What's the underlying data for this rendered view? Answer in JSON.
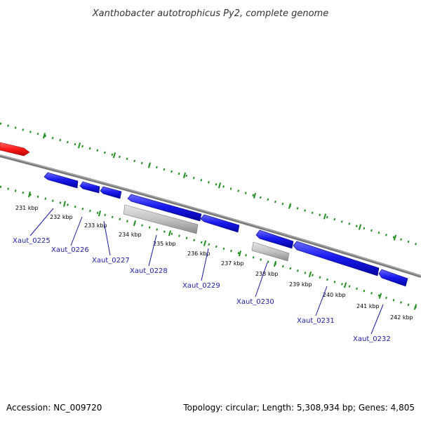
{
  "title": "Xanthobacter autotrophicus Py2, complete genome",
  "footer": {
    "accession": "Accession: NC_009720",
    "topology": "Topology: circular; Length: 5,308,934 bp; Genes: 4,805"
  },
  "colors": {
    "forward_gene": "#ff1a1a",
    "reverse_gene": "#1a1aee",
    "pseudo_gene": "#bdbdbd",
    "backbone": "#808080",
    "ticks": "#1f8f1f",
    "label": "#1a1aa8"
  },
  "kbp_labels": [
    "231 kbp",
    "232 kbp",
    "233 kbp",
    "234 kbp",
    "235 kbp",
    "236 kbp",
    "237 kbp",
    "238 kbp",
    "239 kbp",
    "240 kbp",
    "241 kbp",
    "242 kbp"
  ],
  "genes": [
    {
      "id": "Xaut_0225"
    },
    {
      "id": "Xaut_0226"
    },
    {
      "id": "Xaut_0227"
    },
    {
      "id": "Xaut_0228"
    },
    {
      "id": "Xaut_0229"
    },
    {
      "id": "Xaut_0230"
    },
    {
      "id": "Xaut_0231"
    },
    {
      "id": "Xaut_0232"
    }
  ]
}
